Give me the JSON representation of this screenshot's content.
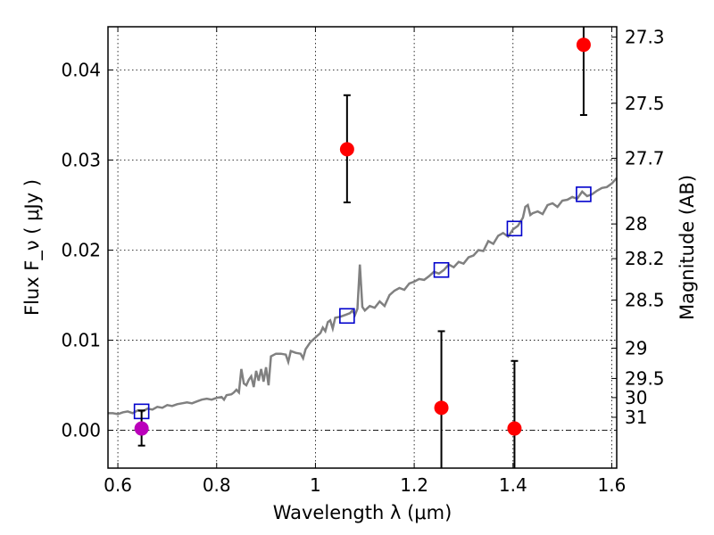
{
  "chart_data": {
    "type": "scatter",
    "title": "",
    "xlabel": "Wavelength  λ (μm)",
    "ylabel": "Flux  F_ν  ( μJy )",
    "ylabel_right": "Magnitude (AB)",
    "xlim": [
      0.58,
      1.61
    ],
    "ylim": [
      -0.0042,
      0.0448
    ],
    "xticks": [
      {
        "value": 0.6,
        "label": "0.6"
      },
      {
        "value": 0.8,
        "label": "0.8"
      },
      {
        "value": 1.0,
        "label": "1"
      },
      {
        "value": 1.2,
        "label": "1.2"
      },
      {
        "value": 1.4,
        "label": "1.4"
      },
      {
        "value": 1.6,
        "label": "1.6"
      }
    ],
    "yticks": [
      {
        "value": 0.0,
        "label": "0.00"
      },
      {
        "value": 0.01,
        "label": "0.01"
      },
      {
        "value": 0.02,
        "label": "0.02"
      },
      {
        "value": 0.03,
        "label": "0.03"
      },
      {
        "value": 0.04,
        "label": "0.04"
      }
    ],
    "right_ticks": [
      {
        "mag": 27.3,
        "label": "27.3"
      },
      {
        "mag": 27.5,
        "label": "27.5"
      },
      {
        "mag": 27.7,
        "label": "27.7"
      },
      {
        "mag": 28.0,
        "label": "28"
      },
      {
        "mag": 28.2,
        "label": "28.2"
      },
      {
        "mag": 28.5,
        "label": "28.5"
      },
      {
        "mag": 29.0,
        "label": "29"
      },
      {
        "mag": 29.5,
        "label": "29.5"
      },
      {
        "mag": 30.0,
        "label": "30"
      },
      {
        "mag": 31.0,
        "label": "31"
      }
    ],
    "grid": true,
    "baseline_y": 0.0,
    "series": [
      {
        "kind": "line",
        "color": "#808080",
        "points": [
          [
            0.58,
            0.0019
          ],
          [
            0.59,
            0.0019
          ],
          [
            0.6,
            0.0018
          ],
          [
            0.61,
            0.002
          ],
          [
            0.62,
            0.0021
          ],
          [
            0.63,
            0.0019
          ],
          [
            0.64,
            0.0022
          ],
          [
            0.65,
            0.0021
          ],
          [
            0.66,
            0.0024
          ],
          [
            0.67,
            0.0023
          ],
          [
            0.68,
            0.0026
          ],
          [
            0.69,
            0.0025
          ],
          [
            0.7,
            0.0028
          ],
          [
            0.71,
            0.0027
          ],
          [
            0.72,
            0.0029
          ],
          [
            0.73,
            0.003
          ],
          [
            0.74,
            0.0031
          ],
          [
            0.75,
            0.003
          ],
          [
            0.76,
            0.0032
          ],
          [
            0.77,
            0.0034
          ],
          [
            0.78,
            0.0035
          ],
          [
            0.79,
            0.0034
          ],
          [
            0.8,
            0.0036
          ],
          [
            0.81,
            0.0037
          ],
          [
            0.815,
            0.0034
          ],
          [
            0.82,
            0.0039
          ],
          [
            0.83,
            0.004
          ],
          [
            0.835,
            0.0042
          ],
          [
            0.84,
            0.0045
          ],
          [
            0.845,
            0.0042
          ],
          [
            0.85,
            0.0068
          ],
          [
            0.855,
            0.0052
          ],
          [
            0.86,
            0.005
          ],
          [
            0.865,
            0.0056
          ],
          [
            0.87,
            0.006
          ],
          [
            0.875,
            0.0048
          ],
          [
            0.88,
            0.0066
          ],
          [
            0.885,
            0.0055
          ],
          [
            0.89,
            0.0068
          ],
          [
            0.895,
            0.0054
          ],
          [
            0.9,
            0.007
          ],
          [
            0.905,
            0.005
          ],
          [
            0.91,
            0.0082
          ],
          [
            0.92,
            0.0085
          ],
          [
            0.93,
            0.0085
          ],
          [
            0.94,
            0.0084
          ],
          [
            0.945,
            0.0076
          ],
          [
            0.95,
            0.0088
          ],
          [
            0.96,
            0.0086
          ],
          [
            0.97,
            0.0085
          ],
          [
            0.975,
            0.008
          ],
          [
            0.98,
            0.009
          ],
          [
            0.99,
            0.0098
          ],
          [
            1.0,
            0.0103
          ],
          [
            1.01,
            0.0108
          ],
          [
            1.015,
            0.0114
          ],
          [
            1.02,
            0.011
          ],
          [
            1.025,
            0.012
          ],
          [
            1.03,
            0.0122
          ],
          [
            1.035,
            0.0113
          ],
          [
            1.04,
            0.0125
          ],
          [
            1.05,
            0.0126
          ],
          [
            1.06,
            0.0128
          ],
          [
            1.07,
            0.013
          ],
          [
            1.075,
            0.0133
          ],
          [
            1.08,
            0.0128
          ],
          [
            1.085,
            0.0135
          ],
          [
            1.09,
            0.0184
          ],
          [
            1.095,
            0.0137
          ],
          [
            1.1,
            0.0133
          ],
          [
            1.11,
            0.0138
          ],
          [
            1.12,
            0.0136
          ],
          [
            1.13,
            0.0143
          ],
          [
            1.14,
            0.0138
          ],
          [
            1.15,
            0.015
          ],
          [
            1.16,
            0.0155
          ],
          [
            1.17,
            0.0158
          ],
          [
            1.18,
            0.0156
          ],
          [
            1.19,
            0.0163
          ],
          [
            1.2,
            0.0165
          ],
          [
            1.21,
            0.0168
          ],
          [
            1.22,
            0.0167
          ],
          [
            1.23,
            0.0171
          ],
          [
            1.24,
            0.0176
          ],
          [
            1.25,
            0.0174
          ],
          [
            1.26,
            0.0178
          ],
          [
            1.27,
            0.0184
          ],
          [
            1.28,
            0.0181
          ],
          [
            1.29,
            0.0187
          ],
          [
            1.3,
            0.0185
          ],
          [
            1.31,
            0.0192
          ],
          [
            1.32,
            0.0194
          ],
          [
            1.33,
            0.02
          ],
          [
            1.34,
            0.0199
          ],
          [
            1.35,
            0.021
          ],
          [
            1.36,
            0.0207
          ],
          [
            1.37,
            0.0216
          ],
          [
            1.38,
            0.0219
          ],
          [
            1.39,
            0.0215
          ],
          [
            1.4,
            0.0223
          ],
          [
            1.41,
            0.0227
          ],
          [
            1.42,
            0.0236
          ],
          [
            1.425,
            0.0248
          ],
          [
            1.43,
            0.025
          ],
          [
            1.435,
            0.0239
          ],
          [
            1.44,
            0.0241
          ],
          [
            1.45,
            0.0243
          ],
          [
            1.46,
            0.024
          ],
          [
            1.47,
            0.025
          ],
          [
            1.48,
            0.0252
          ],
          [
            1.49,
            0.0248
          ],
          [
            1.5,
            0.0255
          ],
          [
            1.51,
            0.0256
          ],
          [
            1.52,
            0.0259
          ],
          [
            1.53,
            0.0257
          ],
          [
            1.54,
            0.0265
          ],
          [
            1.55,
            0.026
          ],
          [
            1.56,
            0.0262
          ],
          [
            1.57,
            0.0266
          ],
          [
            1.58,
            0.0269
          ],
          [
            1.59,
            0.027
          ],
          [
            1.6,
            0.0274
          ],
          [
            1.61,
            0.028
          ]
        ]
      },
      {
        "kind": "open_squares",
        "color": "#0000cc",
        "points": [
          {
            "x": 0.648,
            "y": 0.0021
          },
          {
            "x": 1.064,
            "y": 0.0127
          },
          {
            "x": 1.255,
            "y": 0.0178
          },
          {
            "x": 1.403,
            "y": 0.0224
          },
          {
            "x": 1.543,
            "y": 0.0262
          }
        ]
      },
      {
        "kind": "points_with_errors",
        "color": "#ff0000",
        "points": [
          {
            "x": 1.064,
            "y": 0.0312,
            "ylow": 0.0253,
            "yhigh": 0.0372
          },
          {
            "x": 1.255,
            "y": 0.0025,
            "ylow": -0.0042,
            "yhigh": 0.011
          },
          {
            "x": 1.403,
            "y": 0.0002,
            "ylow": -0.0042,
            "yhigh": 0.0077
          },
          {
            "x": 1.543,
            "y": 0.0428,
            "ylow": 0.035,
            "yhigh": 0.0448
          }
        ]
      },
      {
        "kind": "points_with_errors",
        "color": "#bb00bb",
        "points": [
          {
            "x": 0.648,
            "y": 0.0002,
            "ylow": -0.0017,
            "yhigh": 0.0022
          }
        ]
      }
    ]
  }
}
